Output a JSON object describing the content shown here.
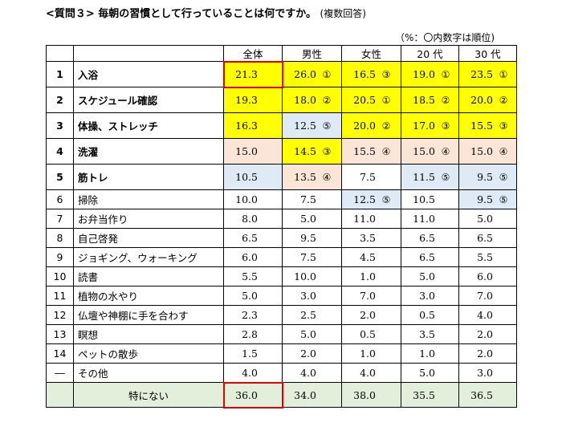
{
  "title": "<質問３> 毎朝の習慣として行っていることは何ですか。",
  "title_sub": "(複数回答)",
  "note": "（%：〇内数字は順位)",
  "columns": [
    "全体",
    "男性",
    "女性",
    "20 代",
    "30 代"
  ],
  "rows": [
    {
      "no": "1",
      "item": "入浴",
      "values": [
        "21.3",
        "26.0",
        "16.5",
        "19.0",
        "23.5"
      ],
      "ranks": [
        "",
        "①",
        "③",
        "①",
        "①"
      ],
      "fills": [
        "y",
        "y",
        "y",
        "y",
        "y"
      ],
      "bold": true
    },
    {
      "no": "2",
      "item": "スケジュール確認",
      "values": [
        "19.3",
        "18.0",
        "20.5",
        "18.5",
        "20.0"
      ],
      "ranks": [
        "",
        "②",
        "①",
        "②",
        "②"
      ],
      "fills": [
        "y",
        "y",
        "y",
        "y",
        "y"
      ],
      "bold": true
    },
    {
      "no": "3",
      "item": "体操、ストレッチ",
      "values": [
        "16.3",
        "12.5",
        "20.0",
        "17.0",
        "15.5"
      ],
      "ranks": [
        "",
        "⑤",
        "②",
        "③",
        "③"
      ],
      "fills": [
        "y",
        "bl",
        "y",
        "y",
        "y"
      ],
      "bold": true
    },
    {
      "no": "4",
      "item": "洗濯",
      "values": [
        "15.0",
        "14.5",
        "15.5",
        "15.0",
        "15.0"
      ],
      "ranks": [
        "",
        "③",
        "④",
        "④",
        "④"
      ],
      "fills": [
        "pk",
        "y",
        "pk",
        "pk",
        "pk"
      ],
      "bold": true
    },
    {
      "no": "5",
      "item": "筋トレ",
      "values": [
        "10.5",
        "13.5",
        "7.5",
        "11.5",
        "9.5"
      ],
      "ranks": [
        "",
        "④",
        "",
        "⑤",
        "⑤"
      ],
      "fills": [
        "bl",
        "pk",
        "wh",
        "bl",
        "bl"
      ],
      "bold": true
    },
    {
      "no": "6",
      "item": "掃除",
      "values": [
        "10.0",
        "7.5",
        "12.5",
        "10.5",
        "9.5"
      ],
      "ranks": [
        "",
        "",
        "⑤",
        "",
        "⑤"
      ],
      "fills": [
        "wh",
        "wh",
        "bl",
        "wh",
        "bl"
      ],
      "bold": false
    },
    {
      "no": "7",
      "item": "お弁当作り",
      "values": [
        "8.0",
        "5.0",
        "11.0",
        "11.0",
        "5.0"
      ],
      "ranks": [
        "",
        "",
        "",
        "",
        ""
      ],
      "fills": [
        "wh",
        "wh",
        "wh",
        "wh",
        "wh"
      ],
      "bold": false
    },
    {
      "no": "8",
      "item": "自己啓発",
      "values": [
        "6.5",
        "9.5",
        "3.5",
        "6.5",
        "6.5"
      ],
      "ranks": [
        "",
        "",
        "",
        "",
        ""
      ],
      "fills": [
        "wh",
        "wh",
        "wh",
        "wh",
        "wh"
      ],
      "bold": false
    },
    {
      "no": "9",
      "item": "ジョギング、ウォーキング",
      "values": [
        "6.0",
        "7.5",
        "4.5",
        "6.5",
        "5.5"
      ],
      "ranks": [
        "",
        "",
        "",
        "",
        ""
      ],
      "fills": [
        "wh",
        "wh",
        "wh",
        "wh",
        "wh"
      ],
      "bold": false
    },
    {
      "no": "10",
      "item": "読書",
      "values": [
        "5.5",
        "10.0",
        "1.0",
        "5.0",
        "6.0"
      ],
      "ranks": [
        "",
        "",
        "",
        "",
        ""
      ],
      "fills": [
        "wh",
        "wh",
        "wh",
        "wh",
        "wh"
      ],
      "bold": false
    },
    {
      "no": "11",
      "item": "植物の水やり",
      "values": [
        "5.0",
        "3.0",
        "7.0",
        "3.0",
        "7.0"
      ],
      "ranks": [
        "",
        "",
        "",
        "",
        ""
      ],
      "fills": [
        "wh",
        "wh",
        "wh",
        "wh",
        "wh"
      ],
      "bold": false
    },
    {
      "no": "12",
      "item": "仏壇や神棚に手を合わす",
      "values": [
        "2.3",
        "2.5",
        "2.0",
        "0.5",
        "4.0"
      ],
      "ranks": [
        "",
        "",
        "",
        "",
        ""
      ],
      "fills": [
        "wh",
        "wh",
        "wh",
        "wh",
        "wh"
      ],
      "bold": false
    },
    {
      "no": "13",
      "item": "瞑想",
      "values": [
        "2.8",
        "5.0",
        "0.5",
        "3.5",
        "2.0"
      ],
      "ranks": [
        "",
        "",
        "",
        "",
        ""
      ],
      "fills": [
        "wh",
        "wh",
        "wh",
        "wh",
        "wh"
      ],
      "bold": false
    },
    {
      "no": "14",
      "item": "ペットの散歩",
      "values": [
        "1.5",
        "2.0",
        "1.0",
        "1.0",
        "2.0"
      ],
      "ranks": [
        "",
        "",
        "",
        "",
        ""
      ],
      "fills": [
        "wh",
        "wh",
        "wh",
        "wh",
        "wh"
      ],
      "bold": false
    },
    {
      "no": "―",
      "item": "その他",
      "values": [
        "4.0",
        "4.0",
        "4.0",
        "5.0",
        "3.0"
      ],
      "ranks": [
        "",
        "",
        "",
        "",
        ""
      ],
      "fills": [
        "wh",
        "wh",
        "wh",
        "wh",
        "wh"
      ],
      "bold": false
    }
  ],
  "last_row": {
    "item": "特にない",
    "values": [
      "36.0",
      "34.0",
      "38.0",
      "35.5",
      "36.5"
    ]
  },
  "colors": {
    "highlight_yellow": "#ffff00",
    "rank_pink": "#fbe5d6",
    "rank_blue": "#deebf7",
    "none_green": "#e2efda",
    "redbox": "#e00000"
  }
}
